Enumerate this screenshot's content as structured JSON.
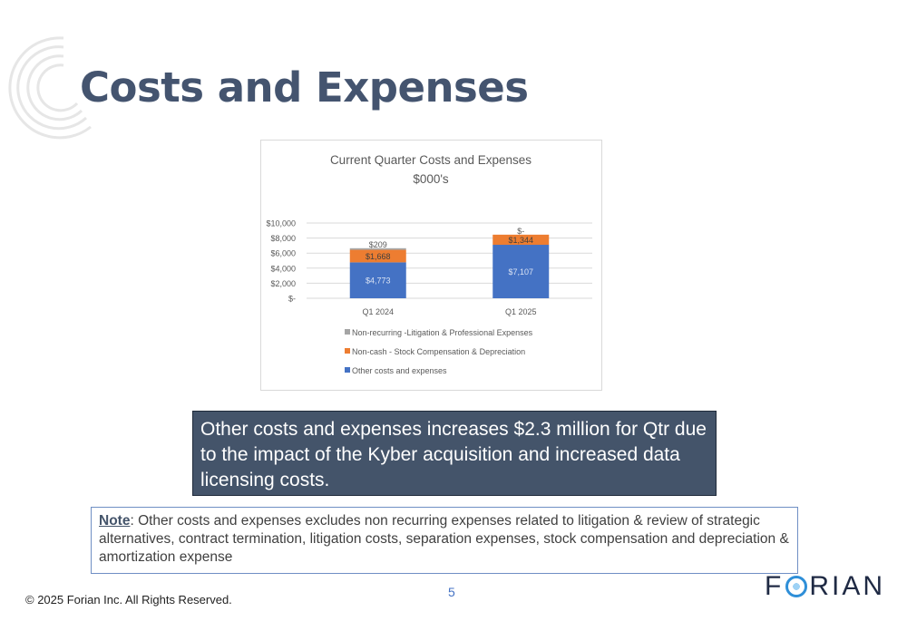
{
  "page": {
    "title": "Costs and Expenses",
    "callout": "Other costs and expenses increases $2.3 million for Qtr due to the impact of the Kyber acquisition and increased data licensing costs.",
    "note_label": "Note",
    "note_text": ": Other costs and expenses excludes non recurring expenses related to litigation & review of strategic alternatives, contract termination, litigation costs,  separation expenses, stock compensation and depreciation & amortization expense",
    "page_number": "5",
    "copyright": "© 2025 Forian Inc.  All Rights Reserved.",
    "logo_text_left": "F",
    "logo_text_right": "RIAN"
  },
  "colors": {
    "title": "#44546f",
    "callout_bg": "#44546a",
    "series_other": "#4472c4",
    "series_noncash": "#ed7d31",
    "series_nonrecurring": "#a5a5a5"
  },
  "chart_data": {
    "type": "bar",
    "stacked": true,
    "title": "Current Quarter Costs and Expenses",
    "subtitle": "$000's",
    "categories": [
      "Q1 2024",
      "Q1 2025"
    ],
    "ylim": [
      0,
      10000
    ],
    "yticks": [
      0,
      2000,
      4000,
      6000,
      8000,
      10000
    ],
    "ytick_labels": [
      "$-",
      "$2,000",
      "$4,000",
      "$6,000",
      "$8,000",
      "$10,000"
    ],
    "grid": true,
    "legend_position": "bottom",
    "series": [
      {
        "name": "Other costs and expenses",
        "values": [
          4773,
          7107
        ],
        "labels": [
          "$4,773",
          "$7,107"
        ],
        "color": "#4472c4"
      },
      {
        "name": "Non-cash - Stock Compensation & Depreciation",
        "values": [
          1668,
          1344
        ],
        "labels": [
          "$1,668",
          "$1,344"
        ],
        "color": "#ed7d31"
      },
      {
        "name": "Non-recurring -Litigation & Professional Expenses",
        "values": [
          209,
          0
        ],
        "labels": [
          "$209",
          "$-"
        ],
        "color": "#a5a5a5"
      }
    ],
    "legend_order": [
      "Non-recurring -Litigation & Professional Expenses",
      "Non-cash - Stock Compensation & Depreciation",
      "Other costs and expenses"
    ]
  }
}
